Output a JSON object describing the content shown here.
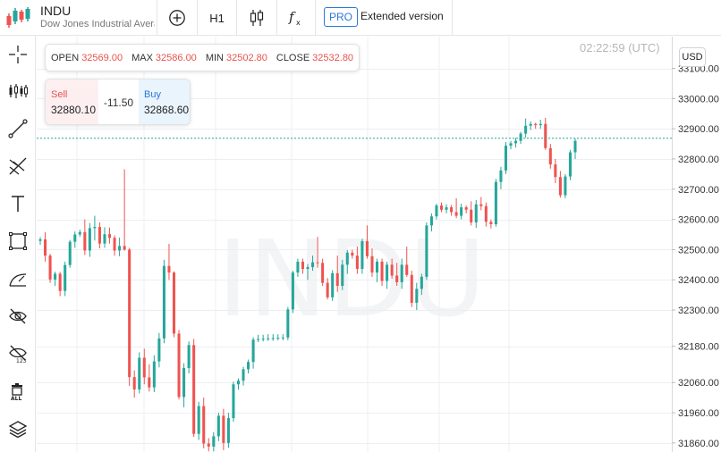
{
  "symbol": {
    "ticker": "INDU",
    "name": "Dow Jones Industrial Average"
  },
  "toolbar": {
    "timeframe": "H1",
    "pro_badge": "PRO",
    "extended": "Extended version",
    "icons": [
      "add-icon",
      "candlestick-type-icon",
      "function-icon"
    ]
  },
  "left_tools": [
    "crosshair-icon",
    "indicators-icon",
    "trend-line-icon",
    "fibonacci-icon",
    "text-icon",
    "rectangle-icon",
    "brush-icon",
    "hide-drawings-icon",
    "hide-123-icon",
    "delete-all-icon",
    "layers-icon"
  ],
  "ohlc": {
    "open_label": "OPEN",
    "open": "32569.00",
    "max_label": "MAX",
    "max": "32586.00",
    "min_label": "MIN",
    "min": "32502.80",
    "close_label": "CLOSE",
    "close": "32532.80"
  },
  "trade": {
    "sell_label": "Sell",
    "sell_price": "32880.10",
    "spread": "-11.50",
    "buy_label": "Buy",
    "buy_price": "32868.60"
  },
  "clock": "02:22:59 (UTC)",
  "currency": "USD",
  "colors": {
    "up": "#26a69a",
    "down": "#ef5350",
    "grid": "#eceff2",
    "watermark": "#f3f4f6",
    "price_line": "#26a69a"
  },
  "chart_data": {
    "type": "candlestick",
    "watermark": "INDU",
    "y_tick_labels": [
      "33100.00",
      "33000.00",
      "32900.00",
      "32800.00",
      "32700.00",
      "32600.00",
      "32500.00",
      "32400.00",
      "32300.00",
      "32180.00",
      "32060.00",
      "31960.00",
      "31860.00"
    ],
    "y_ticks": [
      33100,
      33000,
      32900,
      32800,
      32700,
      32600,
      32500,
      32400,
      32300,
      32180,
      32060,
      31960,
      31860
    ],
    "ylim": [
      31830,
      33205
    ],
    "current_price": 32868.6,
    "candles": [
      [
        32529,
        32541,
        32516,
        32534
      ],
      [
        32534,
        32558,
        32460,
        32480
      ],
      [
        32480,
        32486,
        32390,
        32401
      ],
      [
        32401,
        32427,
        32380,
        32420
      ],
      [
        32420,
        32426,
        32346,
        32363
      ],
      [
        32363,
        32460,
        32346,
        32449
      ],
      [
        32449,
        32532,
        32440,
        32526
      ],
      [
        32526,
        32560,
        32506,
        32550
      ],
      [
        32550,
        32566,
        32542,
        32558
      ],
      [
        32558,
        32600,
        32482,
        32497
      ],
      [
        32497,
        32588,
        32476,
        32571
      ],
      [
        32571,
        32612,
        32530,
        32575
      ],
      [
        32575,
        32590,
        32504,
        32520
      ],
      [
        32520,
        32574,
        32506,
        32551
      ],
      [
        32551,
        32573,
        32520,
        32539
      ],
      [
        32539,
        32547,
        32480,
        32497
      ],
      [
        32497,
        32540,
        32478,
        32512
      ],
      [
        32512,
        32766,
        32496,
        32500
      ],
      [
        32500,
        32506,
        32049,
        32078
      ],
      [
        32078,
        32100,
        32010,
        32037
      ],
      [
        32037,
        32160,
        32024,
        32142
      ],
      [
        32142,
        32172,
        32054,
        32077
      ],
      [
        32077,
        32120,
        32030,
        32044
      ],
      [
        32044,
        32150,
        32028,
        32130
      ],
      [
        32130,
        32224,
        32110,
        32206
      ],
      [
        32206,
        32466,
        32190,
        32446
      ],
      [
        32446,
        32519,
        32400,
        32424
      ],
      [
        32424,
        32428,
        32210,
        32222
      ],
      [
        32222,
        32234,
        32004,
        32012
      ],
      [
        32012,
        32124,
        31978,
        32108
      ],
      [
        32108,
        32196,
        32090,
        32184
      ],
      [
        32184,
        32204,
        31880,
        31890
      ],
      [
        31890,
        31996,
        31870,
        31982
      ],
      [
        31982,
        32010,
        31842,
        31858
      ],
      [
        31858,
        31876,
        31832,
        31848
      ],
      [
        31848,
        31896,
        31832,
        31882
      ],
      [
        31882,
        31960,
        31866,
        31950
      ],
      [
        31950,
        31973,
        31836,
        31860
      ],
      [
        31860,
        31960,
        31844,
        31942
      ],
      [
        31942,
        32063,
        31930,
        32054
      ],
      [
        32054,
        32074,
        32036,
        32066
      ],
      [
        32066,
        32112,
        32050,
        32104
      ],
      [
        32104,
        32136,
        32090,
        32128
      ],
      [
        32128,
        32210,
        32106,
        32202
      ],
      [
        32202,
        32218,
        32194,
        32204
      ],
      [
        32204,
        32218,
        32196,
        32205
      ],
      [
        32205,
        32220,
        32198,
        32206
      ],
      [
        32206,
        32220,
        32198,
        32207
      ],
      [
        32207,
        32220,
        32200,
        32208
      ],
      [
        32208,
        32220,
        32200,
        32209
      ],
      [
        32209,
        32310,
        32200,
        32302
      ],
      [
        32302,
        32430,
        32290,
        32424
      ],
      [
        32424,
        32470,
        32410,
        32460
      ],
      [
        32460,
        32470,
        32420,
        32436
      ],
      [
        32436,
        32452,
        32400,
        32442
      ],
      [
        32442,
        32480,
        32430,
        32458
      ],
      [
        32458,
        32542,
        32440,
        32456
      ],
      [
        32456,
        32470,
        32380,
        32390
      ],
      [
        32390,
        32406,
        32335,
        32342
      ],
      [
        32342,
        32432,
        32330,
        32422
      ],
      [
        32422,
        32480,
        32360,
        32380
      ],
      [
        32380,
        32466,
        32366,
        32450
      ],
      [
        32450,
        32498,
        32420,
        32490
      ],
      [
        32490,
        32500,
        32470,
        32480
      ],
      [
        32480,
        32510,
        32420,
        32436
      ],
      [
        32436,
        32536,
        32420,
        32528
      ],
      [
        32528,
        32580,
        32470,
        32478
      ],
      [
        32478,
        32504,
        32410,
        32424
      ],
      [
        32424,
        32470,
        32392,
        32460
      ],
      [
        32460,
        32470,
        32380,
        32396
      ],
      [
        32396,
        32460,
        32370,
        32450
      ],
      [
        32450,
        32470,
        32404,
        32414
      ],
      [
        32414,
        32456,
        32380,
        32392
      ],
      [
        32392,
        32470,
        32370,
        32450
      ],
      [
        32450,
        32510,
        32410,
        32416
      ],
      [
        32416,
        32430,
        32310,
        32324
      ],
      [
        32324,
        32390,
        32300,
        32370
      ],
      [
        32370,
        32420,
        32350,
        32410
      ],
      [
        32410,
        32590,
        32400,
        32580
      ],
      [
        32580,
        32620,
        32560,
        32610
      ],
      [
        32610,
        32652,
        32600,
        32646
      ],
      [
        32646,
        32656,
        32624,
        32632
      ],
      [
        32632,
        32650,
        32620,
        32640
      ],
      [
        32640,
        32648,
        32612,
        32624
      ],
      [
        32624,
        32670,
        32604,
        32612
      ],
      [
        32612,
        32652,
        32600,
        32640
      ],
      [
        32640,
        32646,
        32620,
        32632
      ],
      [
        32632,
        32660,
        32580,
        32590
      ],
      [
        32590,
        32664,
        32572,
        32650
      ],
      [
        32650,
        32674,
        32630,
        32644
      ],
      [
        32644,
        32656,
        32576,
        32592
      ],
      [
        32592,
        32600,
        32570,
        32584
      ],
      [
        32584,
        32734,
        32576,
        32724
      ],
      [
        32724,
        32774,
        32700,
        32762
      ],
      [
        32762,
        32856,
        32750,
        32844
      ],
      [
        32844,
        32860,
        32832,
        32852
      ],
      [
        32852,
        32870,
        32838,
        32860
      ],
      [
        32860,
        32890,
        32850,
        32884
      ],
      [
        32884,
        32934,
        32870,
        32910
      ],
      [
        32910,
        32924,
        32896,
        32916
      ],
      [
        32916,
        32920,
        32900,
        32912
      ],
      [
        32912,
        32930,
        32900,
        32916
      ],
      [
        32916,
        32936,
        32830,
        32836
      ],
      [
        32836,
        32850,
        32768,
        32782
      ],
      [
        32782,
        32800,
        32720,
        32740
      ],
      [
        32740,
        32760,
        32672,
        32680
      ],
      [
        32680,
        32750,
        32670,
        32742
      ],
      [
        32742,
        32830,
        32730,
        32822
      ],
      [
        32822,
        32868,
        32800,
        32860
      ]
    ]
  }
}
